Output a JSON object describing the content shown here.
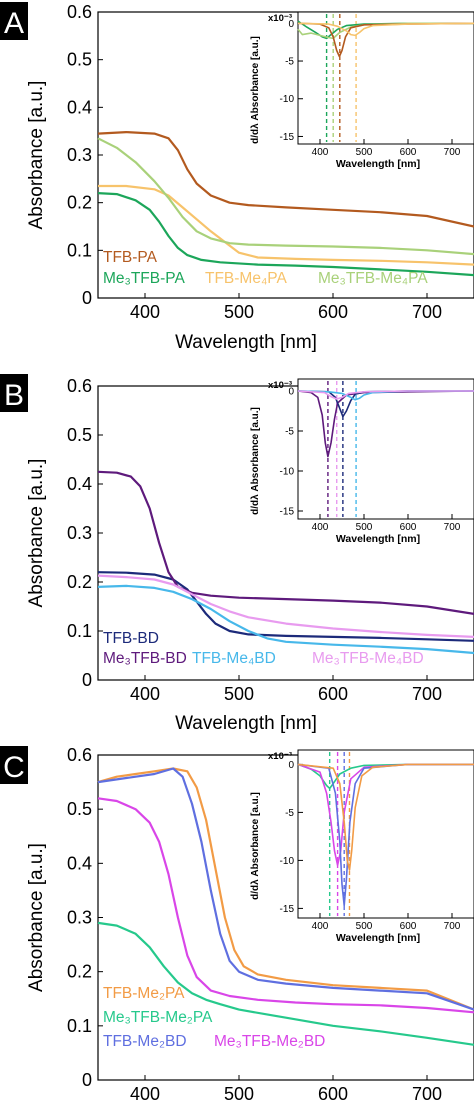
{
  "chart_data": [
    {
      "type": "line",
      "panel_letter": "A",
      "xlabel": "Wavelength [nm]",
      "ylabel": "Absorbance [a.u.]",
      "xlim": [
        350,
        750
      ],
      "ylim": [
        0,
        0.6
      ],
      "x_ticks": [
        "400",
        "500",
        "600",
        "700"
      ],
      "y_ticks": [
        "0",
        "0.1",
        "0.2",
        "0.3",
        "0.4",
        "0.5",
        "0.6"
      ],
      "legend": [
        {
          "text": "TFB-PA",
          "color": "#b35a1f"
        },
        {
          "text": "Me₃TFB-PA",
          "color": "#1ca65a"
        },
        {
          "text": "TFB-Me₄PA",
          "color": "#f7c36b"
        },
        {
          "text": "Me₃TFB-Me₄PA",
          "color": "#a9d17a"
        }
      ],
      "series": [
        {
          "name": "TFB-PA",
          "color": "#b35a1f",
          "x": [
            350,
            380,
            410,
            425,
            435,
            445,
            455,
            470,
            490,
            510,
            550,
            600,
            650,
            700,
            750
          ],
          "y": [
            0.345,
            0.348,
            0.345,
            0.335,
            0.31,
            0.27,
            0.24,
            0.215,
            0.2,
            0.195,
            0.19,
            0.185,
            0.18,
            0.172,
            0.15
          ]
        },
        {
          "name": "Me₃TFB-PA",
          "color": "#1ca65a",
          "x": [
            350,
            370,
            390,
            405,
            415,
            425,
            435,
            445,
            460,
            480,
            520,
            560,
            600,
            650,
            700,
            750
          ],
          "y": [
            0.22,
            0.218,
            0.205,
            0.185,
            0.16,
            0.13,
            0.105,
            0.09,
            0.08,
            0.075,
            0.07,
            0.068,
            0.065,
            0.06,
            0.055,
            0.048
          ]
        },
        {
          "name": "TFB-Me₄PA",
          "color": "#f7c36b",
          "x": [
            350,
            380,
            410,
            425,
            440,
            455,
            470,
            490,
            500,
            520,
            560,
            600,
            650,
            700,
            750
          ],
          "y": [
            0.235,
            0.235,
            0.228,
            0.215,
            0.19,
            0.165,
            0.14,
            0.11,
            0.095,
            0.085,
            0.082,
            0.08,
            0.078,
            0.075,
            0.07
          ]
        },
        {
          "name": "Me₃TFB-Me₄PA",
          "color": "#a9d17a",
          "x": [
            350,
            370,
            390,
            410,
            425,
            440,
            455,
            470,
            490,
            510,
            550,
            600,
            650,
            700,
            750
          ],
          "y": [
            0.335,
            0.315,
            0.285,
            0.245,
            0.21,
            0.17,
            0.14,
            0.125,
            0.115,
            0.112,
            0.11,
            0.108,
            0.105,
            0.1,
            0.092
          ]
        }
      ],
      "inset": {
        "ylabel": "d/dλ Absorbance [a.u.]",
        "xlabel": "Wavelength [nm]",
        "multiplier": "x10⁻³",
        "xlim": [
          350,
          750
        ],
        "ylim": [
          -16,
          1.5
        ],
        "x_ticks": [
          "400",
          "500",
          "600",
          "700"
        ],
        "y_ticks": [
          "0",
          "-5",
          "-10",
          "-15"
        ],
        "vlines": [
          {
            "x": 415,
            "color": "#1ca65a"
          },
          {
            "x": 430,
            "color": "#a9d17a"
          },
          {
            "x": 445,
            "color": "#b35a1f"
          },
          {
            "x": 482,
            "color": "#f7c36b"
          }
        ],
        "series": [
          {
            "color": "#1ca65a",
            "x": [
              350,
              370,
              390,
              405,
              415,
              425,
              440,
              460,
              500,
              600,
              750
            ],
            "y": [
              0.3,
              -0.5,
              -1.2,
              -1.8,
              -2.0,
              -1.5,
              -0.8,
              -0.3,
              -0.1,
              0,
              0
            ]
          },
          {
            "color": "#a9d17a",
            "x": [
              350,
              360,
              380,
              400,
              420,
              430,
              445,
              470,
              500,
              600,
              750
            ],
            "y": [
              -0.8,
              -1.5,
              -1.3,
              -1.6,
              -1.9,
              -2.0,
              -1.2,
              -0.5,
              -0.2,
              0,
              0
            ]
          },
          {
            "color": "#b35a1f",
            "x": [
              350,
              400,
              420,
              430,
              438,
              444,
              450,
              458,
              470,
              500,
              600,
              750
            ],
            "y": [
              0,
              -0.1,
              -0.6,
              -1.8,
              -3.6,
              -4.4,
              -3.6,
              -1.8,
              -0.6,
              -0.2,
              -0.1,
              0
            ]
          },
          {
            "color": "#f7c36b",
            "x": [
              350,
              420,
              440,
              460,
              470,
              480,
              490,
              500,
              520,
              600,
              750
            ],
            "y": [
              0,
              -0.1,
              -0.4,
              -1.0,
              -1.5,
              -1.6,
              -1.2,
              -0.7,
              -0.3,
              -0.1,
              0
            ]
          }
        ]
      }
    },
    {
      "type": "line",
      "panel_letter": "B",
      "xlabel": "Wavelength [nm]",
      "ylabel": "Absorbance [a.u.]",
      "xlim": [
        350,
        750
      ],
      "ylim": [
        0,
        0.6
      ],
      "x_ticks": [
        "400",
        "500",
        "600",
        "700"
      ],
      "y_ticks": [
        "0",
        "0.1",
        "0.2",
        "0.3",
        "0.4",
        "0.5",
        "0.6"
      ],
      "legend": [
        {
          "text": "TFB-BD",
          "color": "#1c2a7a"
        },
        {
          "text": "Me₃TFB-BD",
          "color": "#5e1a7c"
        },
        {
          "text": "TFB-Me₄BD",
          "color": "#47b8ea"
        },
        {
          "text": "Me₃TFB-Me₄BD",
          "color": "#e89bef"
        }
      ],
      "series": [
        {
          "name": "TFB-BD",
          "color": "#1c2a7a",
          "x": [
            350,
            380,
            410,
            430,
            445,
            455,
            465,
            475,
            490,
            510,
            550,
            600,
            650,
            700,
            750
          ],
          "y": [
            0.22,
            0.219,
            0.215,
            0.205,
            0.185,
            0.16,
            0.135,
            0.115,
            0.1,
            0.093,
            0.09,
            0.088,
            0.086,
            0.083,
            0.08
          ]
        },
        {
          "name": "Me₃TFB-BD",
          "color": "#5e1a7c",
          "x": [
            350,
            370,
            385,
            395,
            405,
            415,
            425,
            435,
            450,
            470,
            500,
            550,
            600,
            650,
            700,
            750
          ],
          "y": [
            0.425,
            0.423,
            0.415,
            0.395,
            0.35,
            0.28,
            0.22,
            0.19,
            0.178,
            0.172,
            0.168,
            0.165,
            0.162,
            0.158,
            0.15,
            0.135
          ]
        },
        {
          "name": "TFB-Me₄BD",
          "color": "#47b8ea",
          "x": [
            350,
            380,
            410,
            430,
            450,
            470,
            490,
            510,
            530,
            550,
            600,
            650,
            700,
            750
          ],
          "y": [
            0.19,
            0.192,
            0.188,
            0.18,
            0.165,
            0.145,
            0.12,
            0.1,
            0.085,
            0.078,
            0.072,
            0.068,
            0.063,
            0.055
          ]
        },
        {
          "name": "Me₃TFB-Me₄BD",
          "color": "#e89bef",
          "x": [
            350,
            380,
            410,
            430,
            450,
            470,
            490,
            510,
            550,
            600,
            650,
            700,
            750
          ],
          "y": [
            0.213,
            0.21,
            0.205,
            0.195,
            0.175,
            0.155,
            0.14,
            0.128,
            0.115,
            0.105,
            0.098,
            0.092,
            0.088
          ]
        }
      ],
      "inset": {
        "ylabel": "d/dλ Absorbance [a.u.]",
        "xlabel": "Wavelength [nm]",
        "multiplier": "x10⁻³",
        "xlim": [
          350,
          750
        ],
        "ylim": [
          -16,
          1.5
        ],
        "x_ticks": [
          "400",
          "500",
          "600",
          "700"
        ],
        "y_ticks": [
          "0",
          "-5",
          "-10",
          "-15"
        ],
        "vlines": [
          {
            "x": 418,
            "color": "#5e1a7c"
          },
          {
            "x": 438,
            "color": "#e89bef"
          },
          {
            "x": 452,
            "color": "#1c2a7a"
          },
          {
            "x": 482,
            "color": "#47b8ea"
          }
        ],
        "series": [
          {
            "color": "#5e1a7c",
            "x": [
              350,
              380,
              395,
              405,
              412,
              418,
              425,
              433,
              440,
              460,
              500,
              600,
              750
            ],
            "y": [
              0,
              -0.2,
              -0.8,
              -3.0,
              -6.5,
              -8.2,
              -6.5,
              -3.5,
              -1.5,
              -0.5,
              -0.2,
              -0.1,
              0
            ]
          },
          {
            "color": "#1c2a7a",
            "x": [
              350,
              420,
              435,
              445,
              452,
              460,
              470,
              480,
              500,
              600,
              750
            ],
            "y": [
              0,
              -0.1,
              -0.8,
              -2.2,
              -3.2,
              -2.5,
              -1.2,
              -0.4,
              -0.1,
              0,
              0
            ]
          },
          {
            "color": "#47b8ea",
            "x": [
              350,
              420,
              450,
              470,
              480,
              490,
              500,
              520,
              600,
              750
            ],
            "y": [
              0,
              -0.1,
              -0.3,
              -0.8,
              -1.1,
              -0.9,
              -0.5,
              -0.2,
              0,
              0
            ]
          },
          {
            "color": "#e89bef",
            "x": [
              350,
              410,
              425,
              438,
              450,
              465,
              500,
              600,
              750
            ],
            "y": [
              0,
              -0.2,
              -0.7,
              -1.0,
              -0.8,
              -0.3,
              -0.1,
              0,
              0
            ]
          }
        ]
      }
    },
    {
      "type": "line",
      "panel_letter": "C",
      "xlabel": "Wavelength [nm]",
      "ylabel": "Absorbance [a.u.]",
      "xlim": [
        350,
        750
      ],
      "ylim": [
        0,
        0.6
      ],
      "x_ticks": [
        "400",
        "500",
        "600",
        "700"
      ],
      "y_ticks": [
        "0",
        "0.1",
        "0.2",
        "0.3",
        "0.4",
        "0.5",
        "0.6"
      ],
      "legend": [
        {
          "text": "TFB-Me₂PA",
          "color": "#f29b45"
        },
        {
          "text": "Me₃TFB-Me₂PA",
          "color": "#26c98c"
        },
        {
          "text": "TFB-Me₂BD",
          "color": "#5f6fe0"
        },
        {
          "text": "Me₃TFB-Me₂BD",
          "color": "#d946e8"
        }
      ],
      "series": [
        {
          "name": "TFB-Me₂PA",
          "color": "#f29b45",
          "x": [
            350,
            370,
            390,
            410,
            430,
            445,
            455,
            465,
            475,
            485,
            495,
            505,
            520,
            550,
            600,
            650,
            700,
            750
          ],
          "y": [
            0.55,
            0.56,
            0.565,
            0.57,
            0.575,
            0.57,
            0.54,
            0.48,
            0.39,
            0.3,
            0.24,
            0.21,
            0.195,
            0.185,
            0.175,
            0.17,
            0.165,
            0.13
          ]
        },
        {
          "name": "Me₃TFB-Me₂PA",
          "color": "#26c98c",
          "x": [
            350,
            370,
            390,
            405,
            420,
            435,
            450,
            465,
            480,
            500,
            550,
            600,
            650,
            700,
            750
          ],
          "y": [
            0.29,
            0.285,
            0.27,
            0.245,
            0.21,
            0.18,
            0.16,
            0.148,
            0.14,
            0.13,
            0.115,
            0.1,
            0.09,
            0.078,
            0.065
          ]
        },
        {
          "name": "TFB-Me₂BD",
          "color": "#5f6fe0",
          "x": [
            350,
            370,
            390,
            410,
            430,
            440,
            450,
            460,
            470,
            480,
            490,
            500,
            520,
            550,
            600,
            650,
            700,
            750
          ],
          "y": [
            0.55,
            0.555,
            0.56,
            0.565,
            0.575,
            0.56,
            0.51,
            0.44,
            0.35,
            0.27,
            0.22,
            0.2,
            0.185,
            0.178,
            0.17,
            0.165,
            0.16,
            0.13
          ]
        },
        {
          "name": "Me₃TFB-Me₂BD",
          "color": "#d946e8",
          "x": [
            350,
            370,
            390,
            405,
            415,
            425,
            435,
            445,
            455,
            470,
            490,
            520,
            560,
            600,
            650,
            700,
            750
          ],
          "y": [
            0.52,
            0.515,
            0.5,
            0.475,
            0.44,
            0.38,
            0.3,
            0.23,
            0.19,
            0.165,
            0.155,
            0.148,
            0.143,
            0.14,
            0.138,
            0.133,
            0.125
          ]
        }
      ],
      "inset": {
        "ylabel": "d/dλ Absorbance [a.u.]",
        "xlabel": "Wavelength [nm]",
        "multiplier": "x10⁻³",
        "xlim": [
          350,
          750
        ],
        "ylim": [
          -16,
          1.5
        ],
        "x_ticks": [
          "400",
          "500",
          "600",
          "700"
        ],
        "y_ticks": [
          "0",
          "-5",
          "-10",
          "-15"
        ],
        "vlines": [
          {
            "x": 422,
            "color": "#26c98c"
          },
          {
            "x": 440,
            "color": "#d946e8"
          },
          {
            "x": 455,
            "color": "#5f6fe0"
          },
          {
            "x": 467,
            "color": "#f29b45"
          }
        ],
        "series": [
          {
            "color": "#26c98c",
            "x": [
              350,
              380,
              400,
              415,
              422,
              430,
              445,
              470,
              500,
              600,
              750
            ],
            "y": [
              0,
              -0.5,
              -1.2,
              -2.2,
              -2.5,
              -2.0,
              -1.0,
              -0.4,
              -0.1,
              0,
              0
            ]
          },
          {
            "color": "#d946e8",
            "x": [
              350,
              400,
              415,
              425,
              433,
              440,
              447,
              455,
              470,
              500,
              600,
              750
            ],
            "y": [
              0,
              -0.8,
              -3.0,
              -6.0,
              -9.0,
              -10.5,
              -9.0,
              -5.0,
              -1.5,
              -0.3,
              0,
              0
            ]
          },
          {
            "color": "#5f6fe0",
            "x": [
              350,
              420,
              435,
              445,
              450,
              455,
              460,
              468,
              480,
              500,
              600,
              750
            ],
            "y": [
              0,
              -0.4,
              -3.0,
              -8.0,
              -12.5,
              -14.7,
              -12.0,
              -6.0,
              -2.0,
              -0.4,
              0,
              0
            ]
          },
          {
            "color": "#f29b45",
            "x": [
              350,
              430,
              445,
              455,
              462,
              467,
              472,
              480,
              495,
              520,
              600,
              750
            ],
            "y": [
              0,
              -0.4,
              -2.0,
              -6.0,
              -10.0,
              -11.0,
              -9.0,
              -4.5,
              -1.2,
              -0.3,
              0,
              0
            ]
          }
        ]
      }
    }
  ]
}
